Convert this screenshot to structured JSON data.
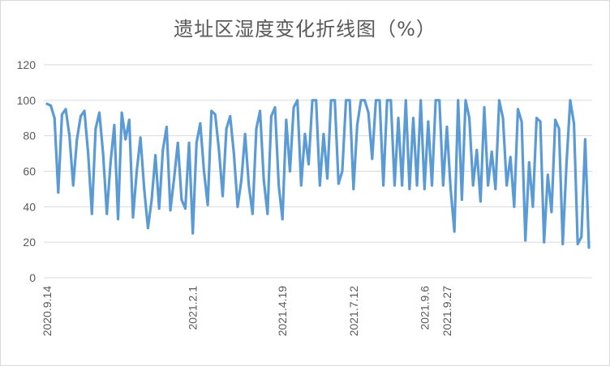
{
  "chart_data": {
    "type": "line",
    "title": "遗址区湿度变化折线图（%）",
    "xlabel": "",
    "ylabel": "",
    "ylim": [
      0,
      120
    ],
    "yticks": [
      0,
      20,
      40,
      60,
      80,
      100,
      120
    ],
    "grid": "horizontal",
    "color": "#5B9BD5",
    "x_tick_labels": [
      {
        "label": "2020.9.14",
        "index": 0
      },
      {
        "label": "2021.2.1",
        "index": 39
      },
      {
        "label": "2021.4.19",
        "index": 63
      },
      {
        "label": "2021.7.12",
        "index": 82
      },
      {
        "label": "2021.9.6",
        "index": 101
      },
      {
        "label": "2021.9.27",
        "index": 107
      }
    ],
    "series": [
      {
        "values": [
          98,
          97,
          90,
          48,
          92,
          95,
          80,
          52,
          78,
          91,
          94,
          70,
          36,
          84,
          93,
          70,
          36,
          65,
          86,
          33,
          93,
          78,
          89,
          34,
          60,
          79,
          50,
          28,
          44,
          69,
          39,
          72,
          85,
          38,
          56,
          76,
          44,
          39,
          76,
          25,
          76,
          87,
          60,
          41,
          94,
          92,
          72,
          46,
          84,
          91,
          70,
          40,
          55,
          81,
          52,
          36,
          84,
          94,
          55,
          36,
          91,
          96,
          52,
          33,
          89,
          60,
          96,
          100,
          52,
          81,
          64,
          100,
          100,
          52,
          81,
          56,
          100,
          100,
          53,
          60,
          100,
          100,
          50,
          86,
          100,
          100,
          93,
          67,
          100,
          100,
          52,
          100,
          100,
          52,
          90,
          52,
          100,
          50,
          90,
          52,
          100,
          50,
          88,
          52,
          100,
          100,
          52,
          85,
          50,
          26,
          100,
          44,
          100,
          90,
          52,
          72,
          43,
          96,
          52,
          71,
          50,
          100,
          90,
          52,
          68,
          40,
          95,
          88,
          21,
          65,
          40,
          90,
          88,
          20,
          58,
          37,
          89,
          84,
          19,
          64,
          100,
          87,
          19,
          23,
          78,
          17
        ]
      }
    ]
  }
}
